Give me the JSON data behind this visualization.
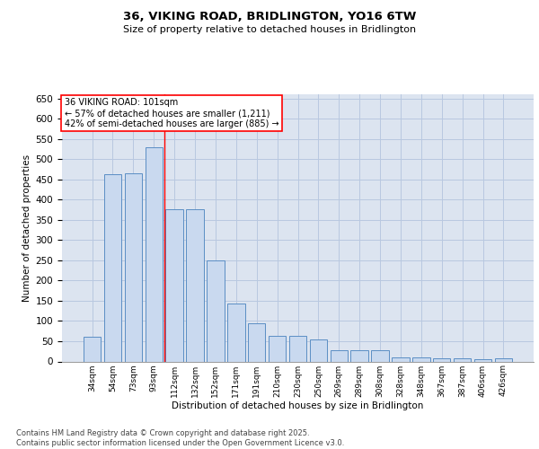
{
  "title_line1": "36, VIKING ROAD, BRIDLINGTON, YO16 6TW",
  "title_line2": "Size of property relative to detached houses in Bridlington",
  "xlabel": "Distribution of detached houses by size in Bridlington",
  "ylabel": "Number of detached properties",
  "categories": [
    "34sqm",
    "54sqm",
    "73sqm",
    "93sqm",
    "112sqm",
    "132sqm",
    "152sqm",
    "171sqm",
    "191sqm",
    "210sqm",
    "230sqm",
    "250sqm",
    "269sqm",
    "289sqm",
    "308sqm",
    "328sqm",
    "348sqm",
    "367sqm",
    "387sqm",
    "406sqm",
    "426sqm"
  ],
  "values": [
    62,
    463,
    465,
    530,
    375,
    375,
    250,
    143,
    95,
    63,
    63,
    55,
    28,
    27,
    27,
    11,
    11,
    8,
    7,
    5,
    7
  ],
  "bar_color": "#c9d9ef",
  "bar_edge_color": "#5b8ec4",
  "grid_color": "#b8c8e0",
  "background_color": "#dce4f0",
  "annotation_box_text": "36 VIKING ROAD: 101sqm\n← 57% of detached houses are smaller (1,211)\n42% of semi-detached houses are larger (885) →",
  "vline_bin_index": 3,
  "footer_text": "Contains HM Land Registry data © Crown copyright and database right 2025.\nContains public sector information licensed under the Open Government Licence v3.0.",
  "ylim": [
    0,
    660
  ],
  "yticks": [
    0,
    50,
    100,
    150,
    200,
    250,
    300,
    350,
    400,
    450,
    500,
    550,
    600,
    650
  ]
}
